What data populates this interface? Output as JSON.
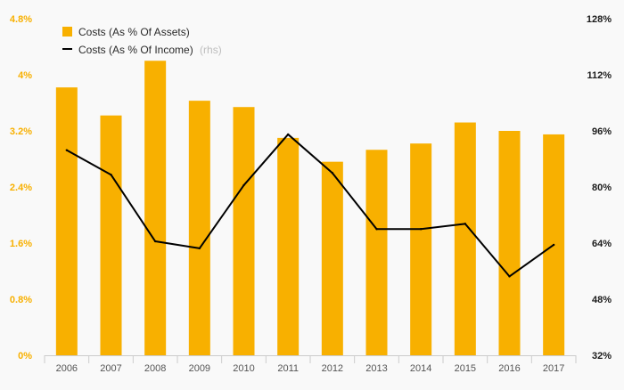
{
  "chart_data": {
    "type": "bar",
    "categories": [
      "2006",
      "2007",
      "2008",
      "2009",
      "2010",
      "2011",
      "2012",
      "2013",
      "2014",
      "2015",
      "2016",
      "2017"
    ],
    "series": [
      {
        "name": "Costs (As % Of Assets)",
        "type": "bar",
        "axis": "left",
        "values": [
          3.82,
          3.42,
          4.2,
          3.63,
          3.54,
          3.1,
          2.76,
          2.93,
          3.02,
          3.32,
          3.2,
          3.15
        ]
      },
      {
        "name": "Costs (As % Of Income)",
        "name_suffix": "(rhs)",
        "type": "line",
        "axis": "right",
        "values": [
          90.5,
          83.5,
          64.5,
          62.5,
          80.5,
          95.0,
          84.0,
          68.0,
          68.0,
          69.5,
          54.5,
          63.5
        ]
      }
    ],
    "left_axis": {
      "ylim": [
        0,
        4.8
      ],
      "ticks": [
        0,
        0.8,
        1.6,
        2.4,
        3.2,
        4.0,
        4.8
      ],
      "tick_labels": [
        "0%",
        "0.8%",
        "1.6%",
        "2.4%",
        "3.2%",
        "4%",
        "4.8%"
      ]
    },
    "right_axis": {
      "ylim": [
        32,
        128
      ],
      "ticks": [
        32,
        48,
        64,
        80,
        96,
        112,
        128
      ],
      "tick_labels": [
        "32%",
        "48%",
        "64%",
        "80%",
        "96%",
        "112%",
        "128%"
      ]
    },
    "grid": false,
    "legend_position": "top-left",
    "colors": {
      "bar": "#f8b000",
      "line": "#000000",
      "left_tick_text": "#f8b000",
      "axis_line": "#cccccc",
      "background": "#f9f9f9"
    }
  }
}
